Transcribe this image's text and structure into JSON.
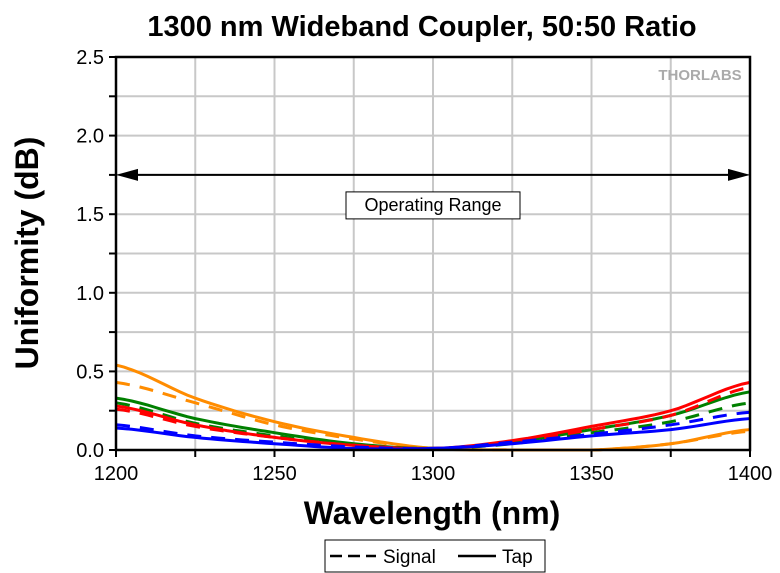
{
  "chart_data": {
    "type": "line",
    "title": "1300 nm Wideband Coupler, 50:50 Ratio",
    "xlabel": "Wavelength (nm)",
    "ylabel": "Uniformity (dB)",
    "xlim": [
      1200,
      1400
    ],
    "ylim": [
      0,
      2.5
    ],
    "xticks": [
      "1200",
      "1250",
      "1300",
      "1350",
      "1400"
    ],
    "yticks": [
      "0.0",
      "0.5",
      "1.0",
      "1.5",
      "2.0",
      "2.5"
    ],
    "grid": true,
    "watermark": "THORLABS",
    "annotation": {
      "text": "Operating Range",
      "from": 1200,
      "to": 1400,
      "y": 1.75
    },
    "legend": {
      "placement": "bottom",
      "entries": [
        {
          "label": "Signal",
          "style": "dashed"
        },
        {
          "label": "Tap",
          "style": "solid"
        }
      ]
    },
    "x": [
      1200,
      1225,
      1250,
      1275,
      1300,
      1325,
      1350,
      1375,
      1400
    ],
    "series": [
      {
        "name": "Orange Tap",
        "color": "#ff8c00",
        "style": "solid",
        "values": [
          0.54,
          0.33,
          0.18,
          0.08,
          0.01,
          0.0,
          0.0,
          0.04,
          0.13
        ]
      },
      {
        "name": "Orange Signal",
        "color": "#ff8c00",
        "style": "dashed",
        "values": [
          0.43,
          0.3,
          0.16,
          0.07,
          0.01,
          0.0,
          0.0,
          0.04,
          0.12
        ]
      },
      {
        "name": "Green Tap",
        "color": "#008000",
        "style": "solid",
        "values": [
          0.33,
          0.2,
          0.11,
          0.04,
          0.01,
          0.05,
          0.13,
          0.22,
          0.37
        ]
      },
      {
        "name": "Green Signal",
        "color": "#008000",
        "style": "dashed",
        "values": [
          0.3,
          0.17,
          0.09,
          0.03,
          0.01,
          0.04,
          0.11,
          0.18,
          0.3
        ]
      },
      {
        "name": "Red Tap",
        "color": "#ff0000",
        "style": "solid",
        "values": [
          0.28,
          0.16,
          0.08,
          0.03,
          0.01,
          0.06,
          0.15,
          0.25,
          0.43
        ]
      },
      {
        "name": "Red Signal",
        "color": "#ff0000",
        "style": "dashed",
        "values": [
          0.26,
          0.15,
          0.08,
          0.03,
          0.01,
          0.05,
          0.13,
          0.22,
          0.4
        ]
      },
      {
        "name": "Blue Tap",
        "color": "#0000ff",
        "style": "solid",
        "values": [
          0.14,
          0.08,
          0.04,
          0.01,
          0.01,
          0.04,
          0.09,
          0.13,
          0.2
        ]
      },
      {
        "name": "Blue Signal",
        "color": "#0000ff",
        "style": "dashed",
        "values": [
          0.16,
          0.09,
          0.05,
          0.02,
          0.01,
          0.05,
          0.1,
          0.16,
          0.24
        ]
      }
    ]
  }
}
